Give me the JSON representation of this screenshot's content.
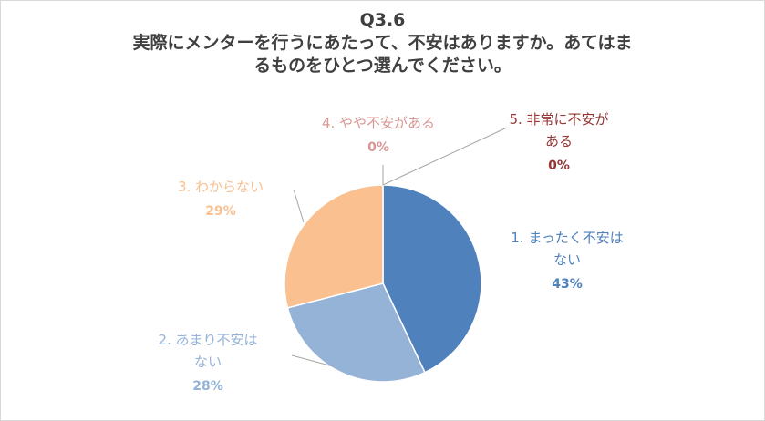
{
  "title_lines": [
    "Q3.6",
    "実際にメンターを行うにあたって、不安はありますか。あてはま",
    "るものをひとつ選んでください。"
  ],
  "chart_data": {
    "type": "pie",
    "title": "Q3.6 実際にメンターを行うにあたって、不安はありますか。あてはまるものをひとつ選んでください。",
    "legend": "none",
    "slices": [
      {
        "label_lines": [
          "1. まったく不安は",
          "ない"
        ],
        "value": 43,
        "value_label": "43%",
        "color": "#4f81bd"
      },
      {
        "label_lines": [
          "2. あまり不安は",
          "ない"
        ],
        "value": 28,
        "value_label": "28%",
        "color": "#95b3d7"
      },
      {
        "label_lines": [
          "3. わからない"
        ],
        "value": 29,
        "value_label": "29%",
        "color": "#fac090"
      },
      {
        "label_lines": [
          "4. やや不安がある"
        ],
        "value": 0,
        "value_label": "0%",
        "color": "#d99694"
      },
      {
        "label_lines": [
          "5. 非常に不安が",
          "ある"
        ],
        "value": 0,
        "value_label": "0%",
        "color": "#953735"
      }
    ]
  }
}
